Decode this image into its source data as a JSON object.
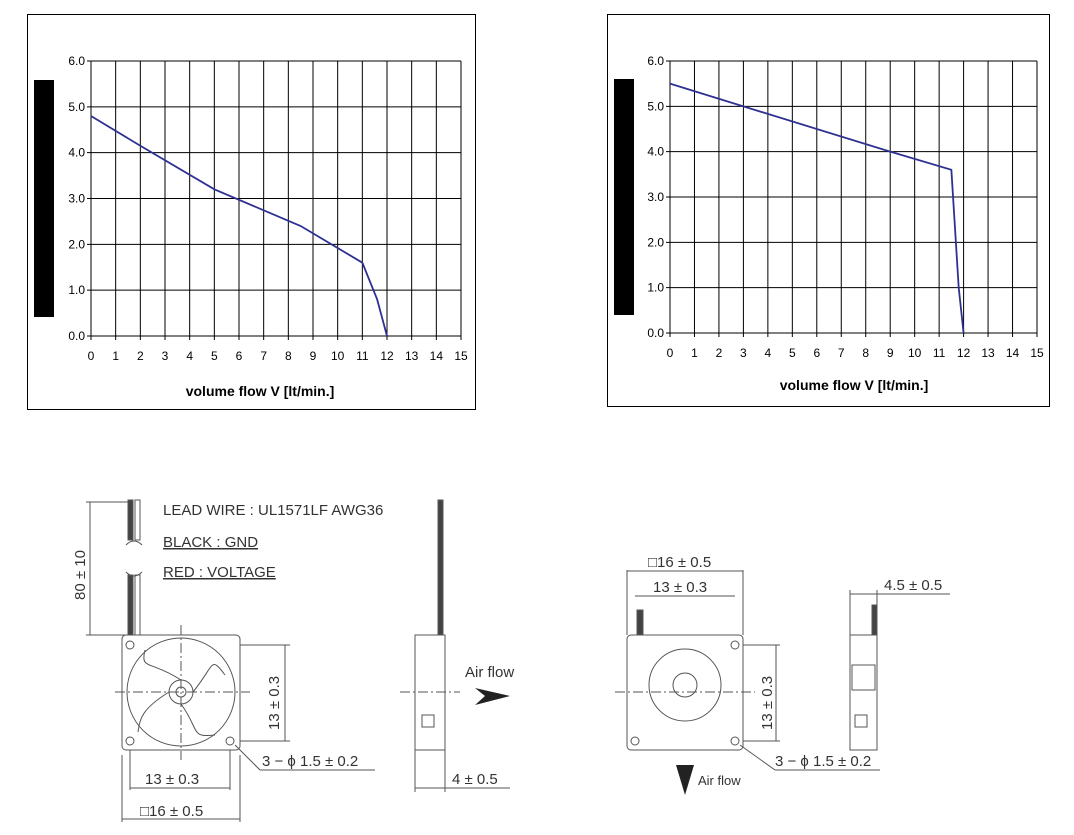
{
  "chart_data": [
    {
      "type": "line",
      "xlabel": "volume flow V  [lt/min.]",
      "ylabel": "",
      "xlim": [
        0,
        15
      ],
      "ylim": [
        0,
        6
      ],
      "x_ticks": [
        "0",
        "1",
        "2",
        "3",
        "4",
        "5",
        "6",
        "7",
        "8",
        "9",
        "10",
        "11",
        "12",
        "13",
        "14",
        "15"
      ],
      "y_ticks": [
        "0.0",
        "1.0",
        "2.0",
        "3.0",
        "4.0",
        "5.0",
        "6.0"
      ],
      "grid": true,
      "line_color": "#2e3192",
      "series": [
        {
          "x": [
            0,
            2,
            5,
            8.5,
            11,
            11.6,
            12
          ],
          "y": [
            4.8,
            4.15,
            3.2,
            2.4,
            1.6,
            0.8,
            0
          ]
        }
      ]
    },
    {
      "type": "line",
      "xlabel": "volume flow V  [lt/min.]",
      "ylabel": "",
      "xlim": [
        0,
        15
      ],
      "ylim": [
        0,
        6
      ],
      "x_ticks": [
        "0",
        "1",
        "2",
        "3",
        "4",
        "5",
        "6",
        "7",
        "8",
        "9",
        "10",
        "11",
        "12",
        "13",
        "14",
        "15"
      ],
      "y_ticks": [
        "0.0",
        "1.0",
        "2.0",
        "3.0",
        "4.0",
        "5.0",
        "6.0"
      ],
      "grid": true,
      "line_color": "#2e3192",
      "series": [
        {
          "x": [
            0,
            3,
            9,
            11.5,
            11.8,
            12
          ],
          "y": [
            5.5,
            5.0,
            4.0,
            3.6,
            1.0,
            0
          ]
        }
      ]
    }
  ],
  "drawing": {
    "lead_wire": "LEAD WIRE : UL1571LF AWG36",
    "black": "BLACK : GND",
    "red": "RED : VOLTAGE",
    "wire_length": "80 ± 10",
    "height_a": "13 ± 0.3",
    "hole_a": "3 − ϕ 1.5 ± 0.2",
    "width_inner_a": "13 ± 0.3",
    "width_outer_a": "□16 ± 0.5",
    "airflow_side": "Air flow",
    "depth_a": "4 ± 0.5",
    "width_outer_b": "□16 ± 0.5",
    "width_inner_b": "13 ± 0.3",
    "height_b": "13 ± 0.3",
    "depth_b": "4.5 ± 0.5",
    "airflow_down": "Air flow",
    "hole_b": "3 − ϕ 1.5 ± 0.2"
  }
}
